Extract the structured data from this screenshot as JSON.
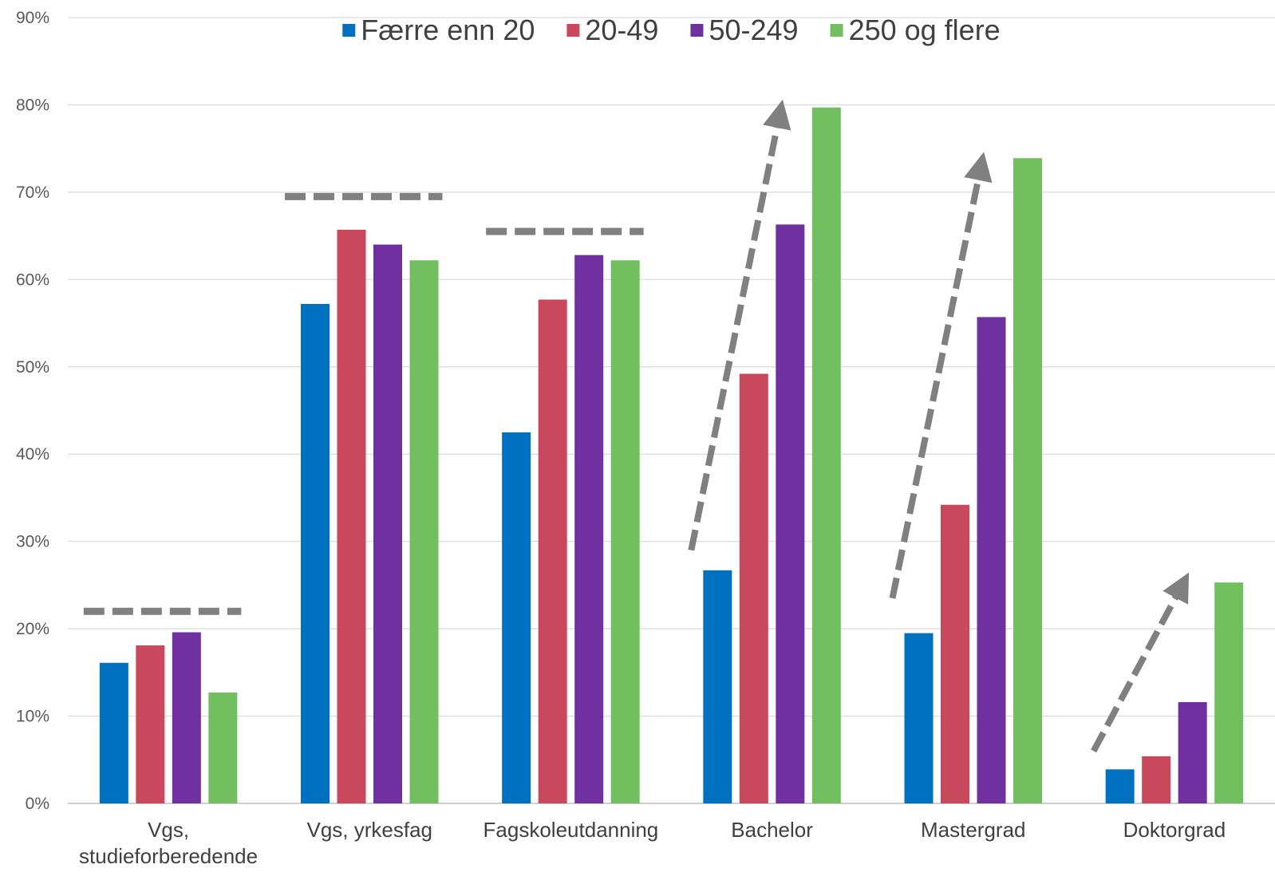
{
  "chart_data": {
    "type": "bar",
    "title": "",
    "xlabel": "",
    "ylabel": "",
    "ylim": [
      0,
      90
    ],
    "y_ticks": [
      "0%",
      "10%",
      "20%",
      "30%",
      "40%",
      "50%",
      "60%",
      "70%",
      "80%",
      "90%"
    ],
    "grid": true,
    "legend_position": "top",
    "categories": [
      [
        "Vgs,",
        "studieforberedende"
      ],
      [
        "Vgs, yrkesfag"
      ],
      [
        "Fagskoleutdanning"
      ],
      [
        "Bachelor"
      ],
      [
        "Mastergrad"
      ],
      [
        "Doktorgrad"
      ]
    ],
    "series": [
      {
        "name": "Færre enn 20",
        "color": "#0070C0",
        "values": [
          16.1,
          57.2,
          42.5,
          26.7,
          19.5,
          3.9
        ]
      },
      {
        "name": "20-49",
        "color": "#C9485B",
        "values": [
          18.1,
          65.7,
          57.7,
          49.2,
          34.2,
          5.4
        ]
      },
      {
        "name": "50-249",
        "color": "#7030A0",
        "values": [
          19.6,
          64.0,
          62.8,
          66.3,
          55.7,
          11.6
        ]
      },
      {
        "name": "250 og flere",
        "color": "#72BF5F",
        "values": [
          12.7,
          62.2,
          62.2,
          79.7,
          73.9,
          25.3
        ]
      }
    ],
    "annotations": [
      {
        "type": "dashed-line",
        "category_index": 0,
        "value": 22
      },
      {
        "type": "dashed-line",
        "category_index": 1,
        "value": 69.5
      },
      {
        "type": "dashed-line",
        "category_index": 2,
        "value": 65.5
      },
      {
        "type": "dashed-arrow",
        "category_index": 3,
        "from_value": 29,
        "to_value": 79
      },
      {
        "type": "dashed-arrow",
        "category_index": 4,
        "from_value": 23.5,
        "to_value": 73
      },
      {
        "type": "dashed-arrow",
        "category_index": 5,
        "from_value": 6,
        "to_value": 25
      }
    ],
    "colors": {
      "grid": "#D9D9D9",
      "axis": "#BFBFBF",
      "annotation": "#808080"
    }
  }
}
